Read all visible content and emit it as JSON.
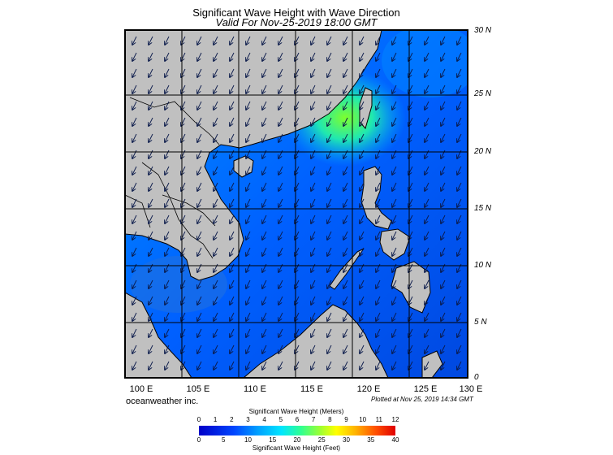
{
  "title": "Significant Wave Height with Wave Direction",
  "subtitle": "Valid For Nov-25-2019 18:00 GMT",
  "brand": "oceanweather inc.",
  "plotted": "Plotted at Nov 25, 2019 14:34 GMT",
  "lat_labels": [
    "30 N",
    "25 N",
    "20 N",
    "15 N",
    "10 N",
    "5 N",
    "0"
  ],
  "lon_labels": [
    "100 E",
    "105 E",
    "110 E",
    "115 E",
    "120 E",
    "125 E",
    "130 E"
  ],
  "colorbar": {
    "title_meters": "Significant Wave Height (Meters)",
    "title_feet": "Significant Wave Height (Feet)",
    "meter_ticks": [
      "0",
      "1",
      "2",
      "3",
      "4",
      "5",
      "6",
      "7",
      "8",
      "9",
      "10",
      "11",
      "12"
    ],
    "feet_ticks": [
      "0",
      "5",
      "10",
      "15",
      "20",
      "25",
      "30",
      "35",
      "40"
    ]
  },
  "colors": {
    "land": "#c0c0c0",
    "sea_low": "#0050ff",
    "sea_mid": "#00a0ff",
    "sea_high": "#30ff60",
    "grid": "#000000"
  }
}
